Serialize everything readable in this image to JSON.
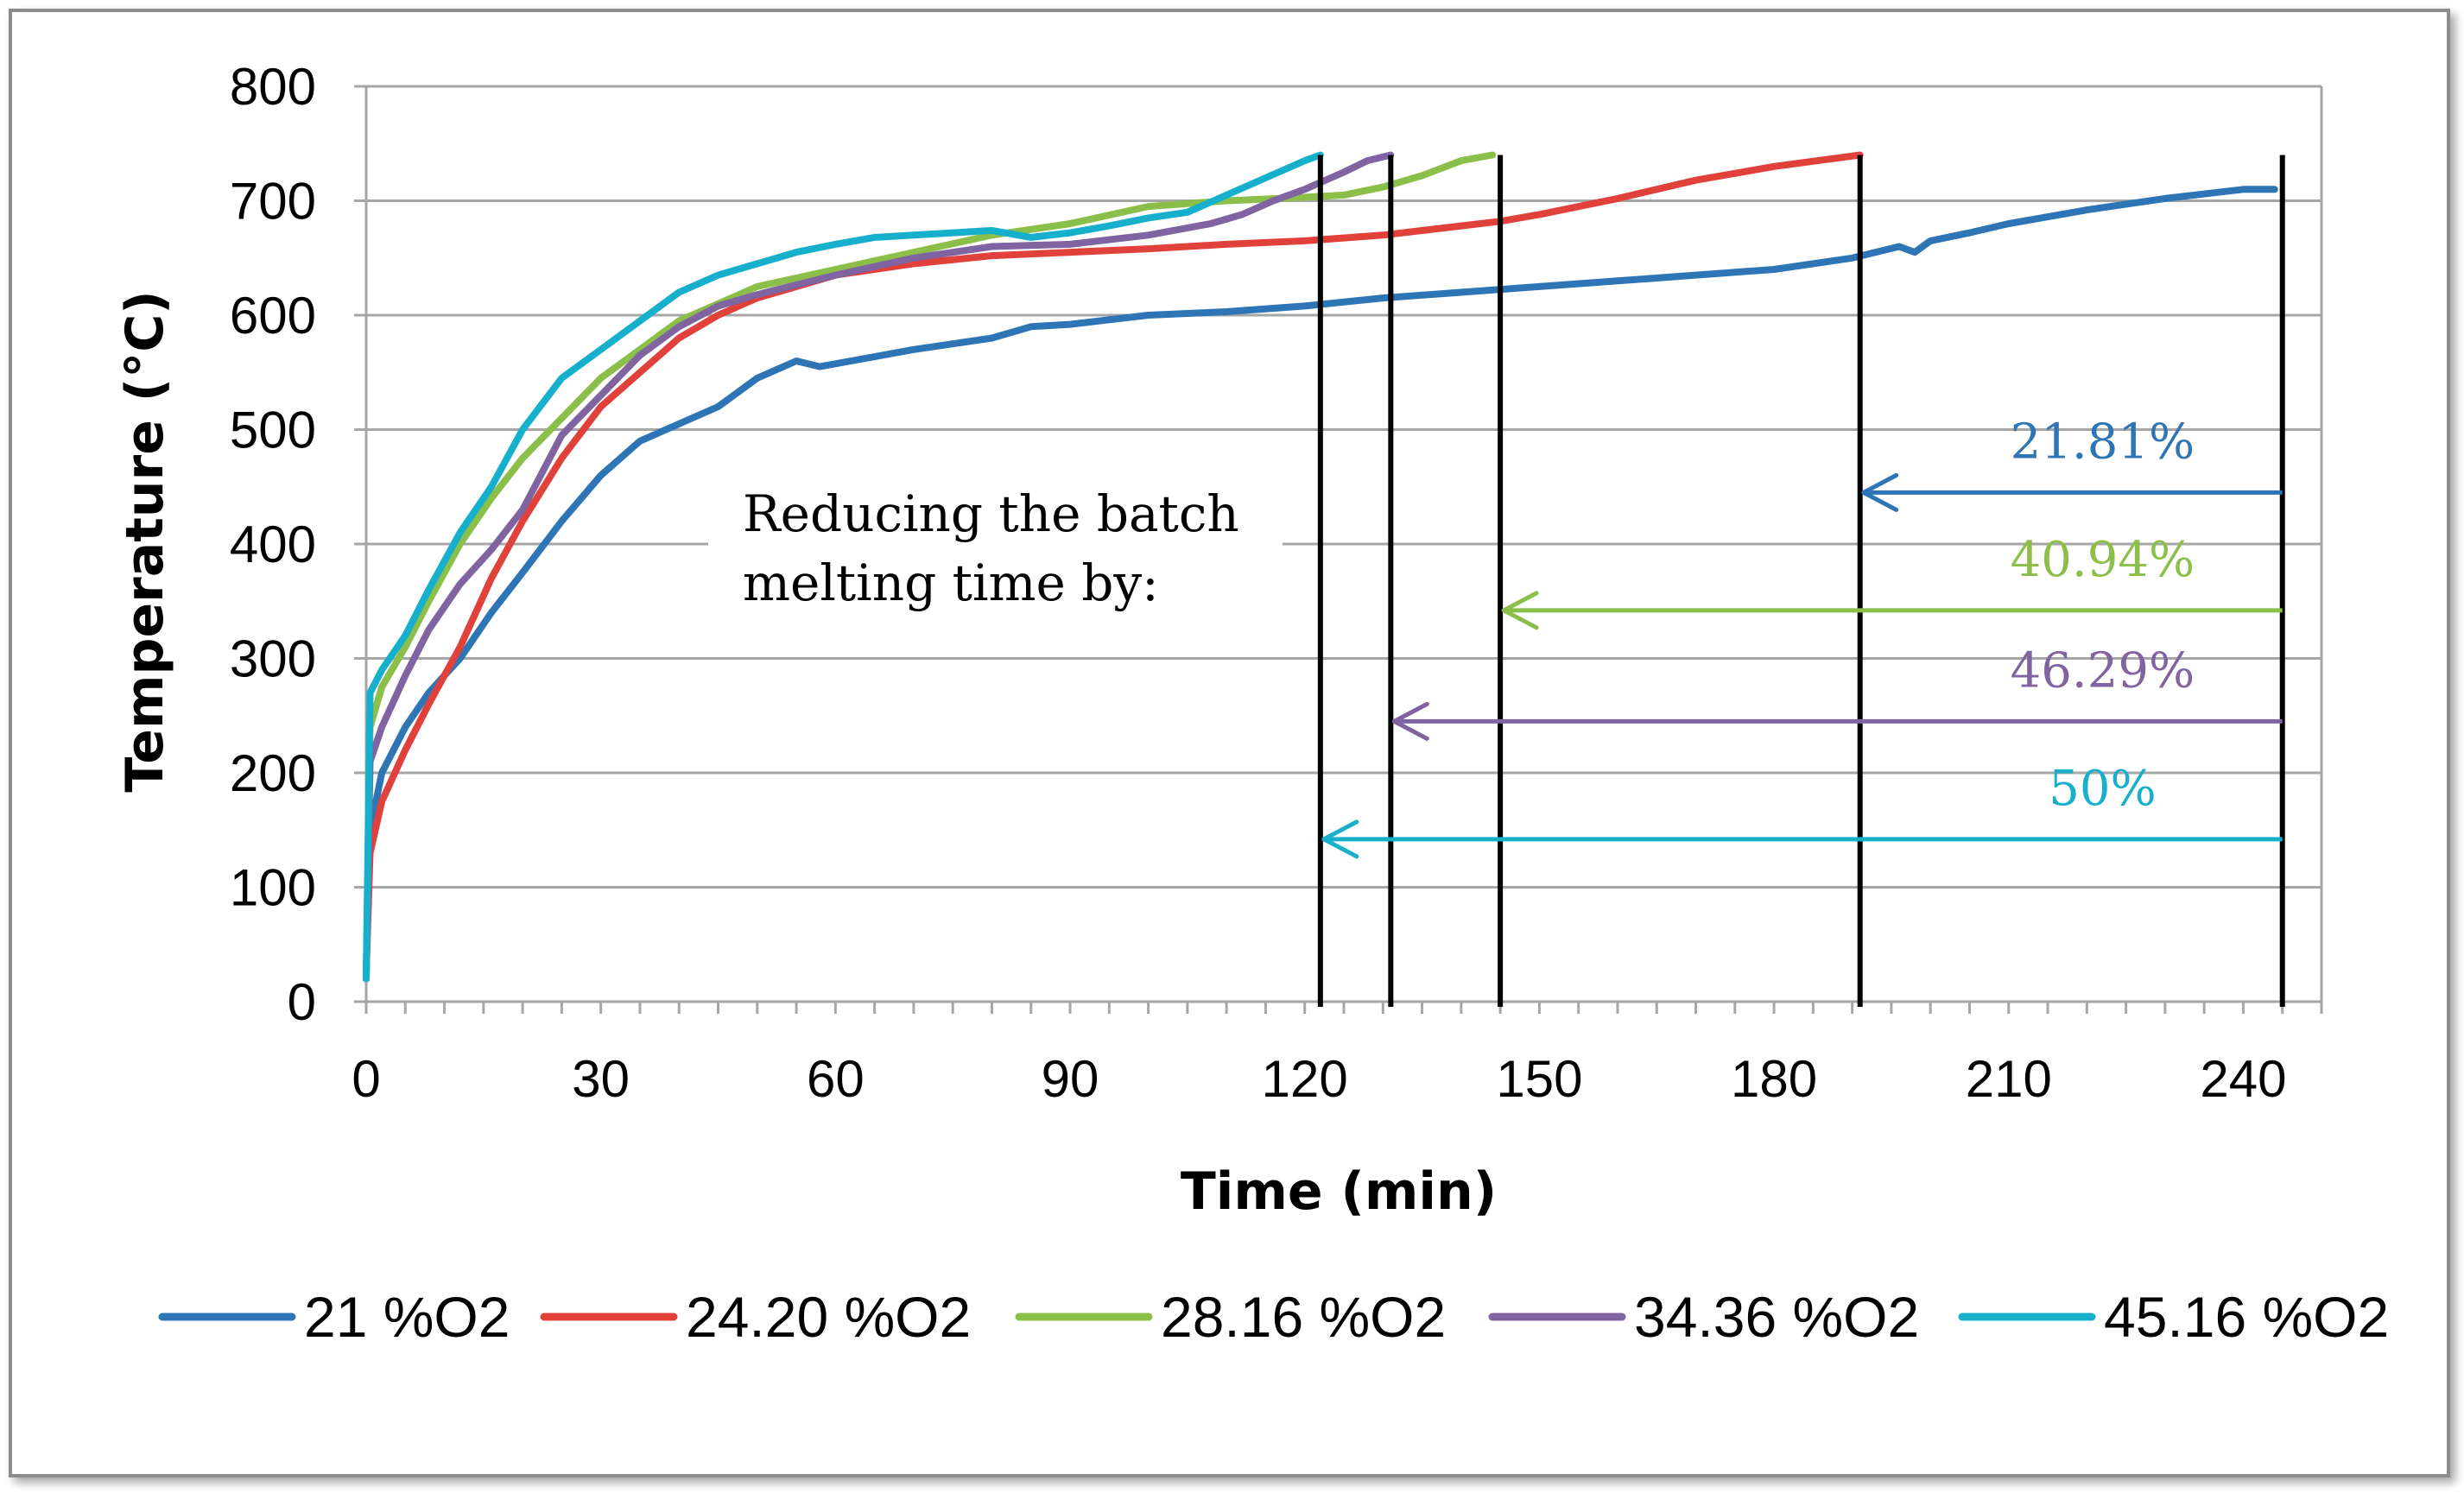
{
  "chart_data": {
    "type": "line",
    "title": "",
    "xlabel": "Time (min)",
    "ylabel": "Temperature (°C)",
    "xlim": [
      0,
      250
    ],
    "ylim": [
      0,
      800
    ],
    "xticks": [
      0,
      30,
      60,
      90,
      120,
      150,
      180,
      210,
      240
    ],
    "yticks": [
      0,
      100,
      200,
      300,
      400,
      500,
      600,
      700,
      800
    ],
    "grid": "horizontal",
    "legend_position": "bottom",
    "series": [
      {
        "name": "21 %O2",
        "color": "#2E75B6",
        "x": [
          0,
          0.5,
          2,
          5,
          8,
          12,
          16,
          20,
          25,
          30,
          35,
          40,
          45,
          50,
          55,
          58,
          62,
          70,
          80,
          85,
          90,
          100,
          110,
          120,
          130,
          140,
          150,
          160,
          170,
          180,
          190,
          196,
          198,
          200,
          205,
          210,
          220,
          230,
          240,
          244
        ],
        "y": [
          30,
          150,
          200,
          240,
          270,
          300,
          340,
          375,
          420,
          460,
          490,
          505,
          520,
          545,
          560,
          555,
          560,
          570,
          580,
          590,
          592,
          600,
          603,
          608,
          615,
          620,
          625,
          630,
          635,
          640,
          650,
          660,
          655,
          665,
          672,
          680,
          692,
          702,
          710,
          710
        ]
      },
      {
        "name": "24.20 %O2",
        "color": "#E0413B",
        "x": [
          0,
          0.5,
          2,
          5,
          8,
          12,
          16,
          20,
          25,
          30,
          35,
          40,
          45,
          50,
          55,
          60,
          70,
          80,
          90,
          100,
          110,
          120,
          130,
          140,
          145,
          150,
          160,
          170,
          180,
          191
        ],
        "y": [
          25,
          130,
          175,
          220,
          260,
          310,
          370,
          420,
          475,
          520,
          550,
          580,
          600,
          615,
          625,
          635,
          645,
          652,
          655,
          658,
          662,
          665,
          670,
          678,
          682,
          688,
          702,
          718,
          730,
          740
        ]
      },
      {
        "name": "28.16 %O2",
        "color": "#8CBF4A",
        "x": [
          0,
          0.5,
          2,
          5,
          8,
          12,
          16,
          20,
          25,
          30,
          35,
          40,
          45,
          50,
          60,
          70,
          80,
          90,
          100,
          110,
          120,
          125,
          130,
          135,
          140,
          144
        ],
        "y": [
          20,
          240,
          275,
          310,
          350,
          400,
          440,
          475,
          510,
          545,
          570,
          595,
          610,
          625,
          640,
          655,
          670,
          680,
          695,
          700,
          703,
          705,
          712,
          722,
          735,
          740
        ]
      },
      {
        "name": "34.36 %O2",
        "color": "#8064A2",
        "x": [
          0,
          0.5,
          2,
          5,
          8,
          12,
          16,
          20,
          25,
          30,
          35,
          40,
          45,
          50,
          60,
          70,
          80,
          90,
          100,
          108,
          112,
          116,
          120,
          125,
          128,
          131
        ],
        "y": [
          20,
          210,
          240,
          285,
          325,
          365,
          395,
          430,
          495,
          530,
          565,
          590,
          608,
          618,
          635,
          650,
          660,
          662,
          670,
          680,
          688,
          700,
          710,
          725,
          735,
          740
        ]
      },
      {
        "name": "45.16 %O2",
        "color": "#17B0CC",
        "x": [
          0,
          0.5,
          2,
          5,
          8,
          12,
          16,
          20,
          25,
          30,
          35,
          40,
          45,
          50,
          55,
          60,
          65,
          70,
          75,
          80,
          85,
          90,
          95,
          100,
          105,
          110,
          115,
          120,
          122
        ],
        "y": [
          20,
          270,
          290,
          320,
          360,
          410,
          450,
          500,
          545,
          570,
          595,
          620,
          635,
          645,
          655,
          662,
          668,
          670,
          672,
          674,
          668,
          672,
          678,
          685,
          690,
          705,
          720,
          735,
          740
        ]
      }
    ],
    "vertical_markers": [
      122,
      131,
      145,
      191,
      245
    ],
    "annotations": [
      {
        "text": "Reducing the batch",
        "role": "note-line-1"
      },
      {
        "text": "melting time by:",
        "role": "note-line-2"
      },
      {
        "text": "21.81%",
        "color": "#2E75B6",
        "from": 245,
        "to": 191,
        "y": 445
      },
      {
        "text": "40.94%",
        "color": "#8CBF4A",
        "from": 245,
        "to": 145,
        "y": 342
      },
      {
        "text": "46.29%",
        "color": "#8064A2",
        "from": 245,
        "to": 131,
        "y": 245
      },
      {
        "text": "50%",
        "color": "#17B0CC",
        "from": 245,
        "to": 122,
        "y": 142
      }
    ]
  }
}
